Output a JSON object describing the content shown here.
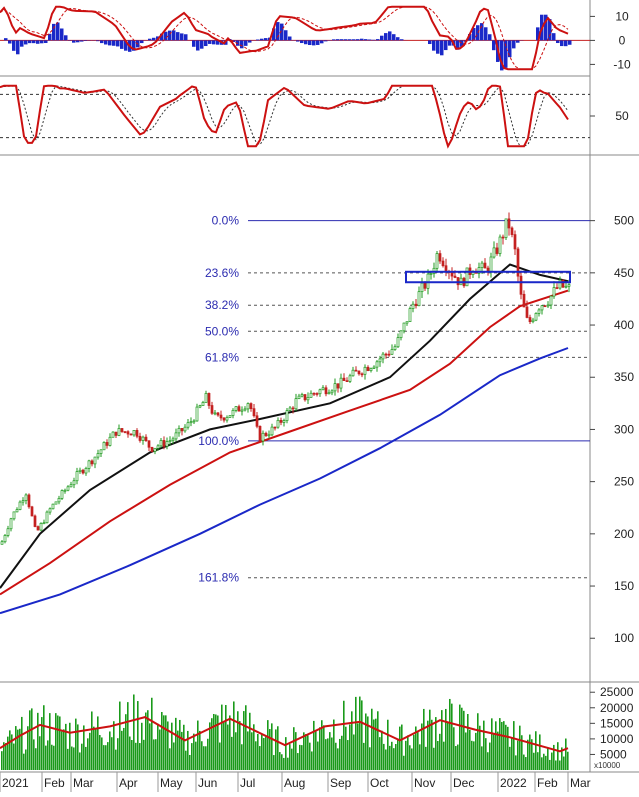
{
  "chart_data": [
    {
      "type": "line",
      "panel": "macd",
      "yticks": [
        10,
        0,
        -10
      ],
      "ylim": [
        -14,
        16
      ],
      "series": [],
      "colors": {
        "macd": "#cc1111",
        "signal": "#cc1111",
        "histogram": "#1a28c8"
      }
    },
    {
      "type": "line",
      "panel": "stochastic",
      "yticks": [
        50
      ],
      "ylim": [
        0,
        100
      ],
      "reference_lines": [
        80,
        20
      ],
      "colors": {
        "k": "#cc1111",
        "d": "#333333"
      }
    },
    {
      "type": "candlestick",
      "panel": "price",
      "ylim": [
        60,
        560
      ],
      "yticks": [
        500,
        450,
        400,
        350,
        300,
        250,
        200,
        150,
        100
      ],
      "fibonacci": {
        "high": 500,
        "low": 289,
        "levels": [
          {
            "label": "0.0%",
            "value": 500
          },
          {
            "label": "23.6%",
            "value": 450
          },
          {
            "label": "38.2%",
            "value": 419
          },
          {
            "label": "50.0%",
            "value": 394
          },
          {
            "label": "61.8%",
            "value": 369
          },
          {
            "label": "100.0%",
            "value": 289
          },
          {
            "label": "161.8%",
            "value": 158
          }
        ]
      },
      "consolidation_box": {
        "y_low": 441,
        "y_high": 451
      },
      "price_points": [
        {
          "x": 0,
          "y": 190
        },
        {
          "x": 10,
          "y": 215
        },
        {
          "x": 25,
          "y": 240
        },
        {
          "x": 35,
          "y": 200
        },
        {
          "x": 50,
          "y": 225
        },
        {
          "x": 75,
          "y": 255
        },
        {
          "x": 95,
          "y": 275
        },
        {
          "x": 115,
          "y": 298
        },
        {
          "x": 135,
          "y": 298
        },
        {
          "x": 150,
          "y": 282
        },
        {
          "x": 170,
          "y": 290
        },
        {
          "x": 188,
          "y": 305
        },
        {
          "x": 205,
          "y": 330
        },
        {
          "x": 215,
          "y": 310
        },
        {
          "x": 232,
          "y": 316
        },
        {
          "x": 248,
          "y": 327
        },
        {
          "x": 258,
          "y": 292
        },
        {
          "x": 275,
          "y": 302
        },
        {
          "x": 295,
          "y": 327
        },
        {
          "x": 318,
          "y": 337
        },
        {
          "x": 340,
          "y": 344
        },
        {
          "x": 358,
          "y": 356
        },
        {
          "x": 375,
          "y": 365
        },
        {
          "x": 395,
          "y": 380
        },
        {
          "x": 412,
          "y": 420
        },
        {
          "x": 428,
          "y": 445
        },
        {
          "x": 437,
          "y": 470
        },
        {
          "x": 447,
          "y": 455
        },
        {
          "x": 460,
          "y": 440
        },
        {
          "x": 472,
          "y": 456
        },
        {
          "x": 485,
          "y": 452
        },
        {
          "x": 497,
          "y": 475
        },
        {
          "x": 507,
          "y": 500
        },
        {
          "x": 514,
          "y": 470
        },
        {
          "x": 519,
          "y": 430
        },
        {
          "x": 527,
          "y": 400
        },
        {
          "x": 537,
          "y": 418
        },
        {
          "x": 548,
          "y": 425
        },
        {
          "x": 558,
          "y": 438
        },
        {
          "x": 566,
          "y": 435
        }
      ],
      "moving_averages": [
        {
          "color": "#111111",
          "points": [
            [
              0,
              148
            ],
            [
              40,
              200
            ],
            [
              90,
              242
            ],
            [
              150,
              278
            ],
            [
              210,
              300
            ],
            [
              260,
              310
            ],
            [
              330,
              325
            ],
            [
              390,
              350
            ],
            [
              430,
              385
            ],
            [
              470,
              425
            ],
            [
              510,
              458
            ],
            [
              540,
              448
            ],
            [
              568,
              442
            ]
          ]
        },
        {
          "color": "#cc1111",
          "points": [
            [
              0,
              142
            ],
            [
              50,
              172
            ],
            [
              110,
              212
            ],
            [
              170,
              247
            ],
            [
              230,
              278
            ],
            [
              290,
              298
            ],
            [
              350,
              318
            ],
            [
              410,
              338
            ],
            [
              450,
              363
            ],
            [
              490,
              398
            ],
            [
              520,
              418
            ],
            [
              568,
              433
            ]
          ]
        },
        {
          "color": "#1a28c8",
          "points": [
            [
              0,
              124
            ],
            [
              60,
              142
            ],
            [
              130,
              170
            ],
            [
              200,
              200
            ],
            [
              260,
              228
            ],
            [
              320,
              253
            ],
            [
              380,
              282
            ],
            [
              440,
              314
            ],
            [
              500,
              352
            ],
            [
              540,
              368
            ],
            [
              568,
              378
            ]
          ]
        }
      ]
    },
    {
      "type": "bar",
      "panel": "volume",
      "ylim": [
        0,
        27000
      ],
      "yticks": [
        25000,
        20000,
        15000,
        10000,
        5000
      ],
      "unit_label": "x10000",
      "bar_color": "#1a9a1a",
      "ma_color": "#cc1111",
      "ma_points": [
        [
          0,
          7000
        ],
        [
          20,
          11000
        ],
        [
          40,
          14500
        ],
        [
          70,
          12000
        ],
        [
          110,
          14000
        ],
        [
          145,
          17000
        ],
        [
          185,
          9500
        ],
        [
          230,
          16500
        ],
        [
          285,
          8000
        ],
        [
          325,
          14000
        ],
        [
          360,
          15500
        ],
        [
          400,
          9500
        ],
        [
          440,
          16000
        ],
        [
          475,
          13000
        ],
        [
          510,
          10500
        ],
        [
          560,
          6000
        ],
        [
          568,
          7000
        ]
      ]
    }
  ],
  "x_axis": {
    "months": [
      "2021",
      "Feb",
      "Mar",
      "Apr",
      "May",
      "Jun",
      "Jul",
      "Aug",
      "Sep",
      "Oct",
      "Nov",
      "Dec",
      "2022",
      "Feb",
      "Mar"
    ]
  }
}
